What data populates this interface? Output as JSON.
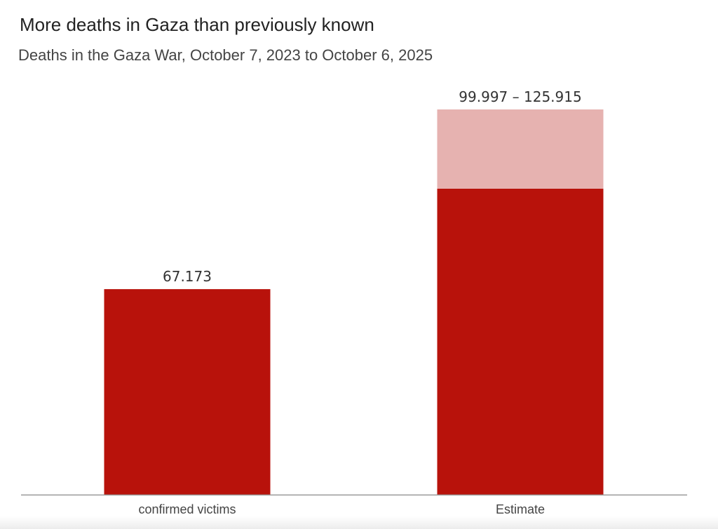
{
  "title": "More deaths in Gaza than previously known",
  "subtitle": "Deaths in the Gaza War, October 7, 2023 to October 6, 2025",
  "colors": {
    "confirmed": "#b8120b",
    "estimate_range": "#e6b2b0",
    "axis": "#999999",
    "label_text": "#333333"
  },
  "chart_data": {
    "type": "bar",
    "title": "More deaths in Gaza than previously known",
    "subtitle": "Deaths in the Gaza War, October 7, 2023 to October 6, 2025",
    "categories": [
      "confirmed victims",
      "Estimate"
    ],
    "bars": [
      {
        "category": "confirmed victims",
        "value": 67173,
        "label": "67.173"
      },
      {
        "category": "Estimate",
        "low": 99997,
        "high": 125915,
        "label": "99.997 – 125.915"
      }
    ],
    "ylim": [
      0,
      125915
    ],
    "grid": false,
    "legend": "none"
  }
}
